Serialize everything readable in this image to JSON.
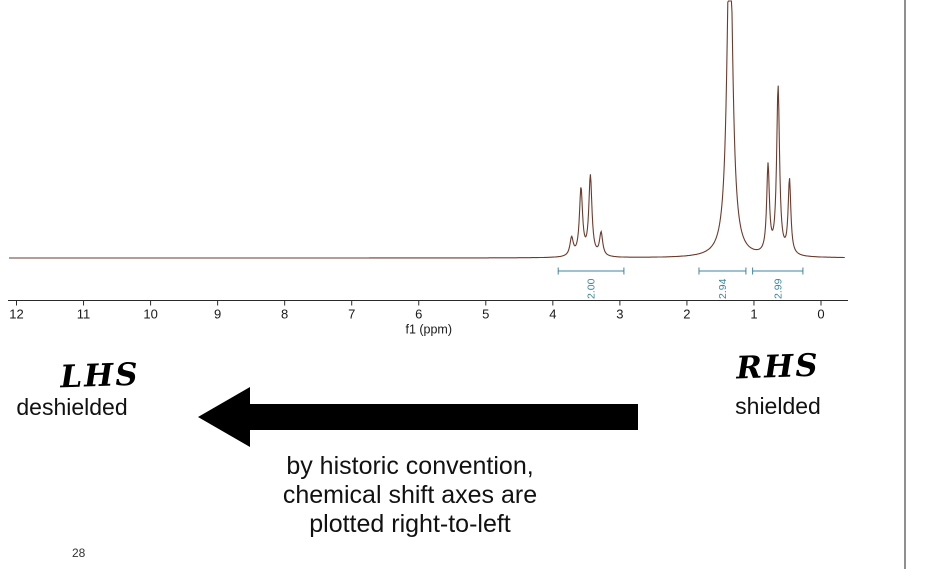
{
  "page": {
    "page_number": "28",
    "background_color": "#ffffff",
    "border_color": "#8f8f8f"
  },
  "chart_data": {
    "type": "line",
    "description": "1H NMR spectrum trace",
    "xlabel": "f1 (ppm)",
    "x_ticks": [
      "12",
      "11",
      "10",
      "9",
      "8",
      "7",
      "6",
      "5",
      "4",
      "3",
      "2",
      "1",
      "0"
    ],
    "x_range": [
      12.1,
      -0.35
    ],
    "axis_reversed": true,
    "grid": false,
    "line_color": "#6e3a2c",
    "integral_color": "#3e85a0",
    "axis_color": "#2a2a2a",
    "peaks": [
      {
        "ppm": 3.72,
        "height": 0.07,
        "width": 0.03
      },
      {
        "ppm": 3.58,
        "height": 0.26,
        "width": 0.028
      },
      {
        "ppm": 3.44,
        "height": 0.31,
        "width": 0.028
      },
      {
        "ppm": 3.28,
        "height": 0.09,
        "width": 0.028
      },
      {
        "ppm": 1.36,
        "height": 1.35,
        "width": 0.05
      },
      {
        "ppm": 0.79,
        "height": 0.34,
        "width": 0.024
      },
      {
        "ppm": 0.64,
        "height": 0.65,
        "width": 0.026
      },
      {
        "ppm": 0.47,
        "height": 0.29,
        "width": 0.024
      }
    ],
    "integrals": [
      {
        "label": "2.00",
        "from": 3.92,
        "to": 2.94
      },
      {
        "label": "2.94",
        "from": 1.82,
        "to": 1.12
      },
      {
        "label": "2.99",
        "from": 1.02,
        "to": 0.27
      }
    ]
  },
  "annotations": {
    "lhs_label": "LHS",
    "lhs_sub": "deshielded",
    "rhs_label": "RHS",
    "rhs_sub": "shielded",
    "caption_lines": [
      "by historic convention,",
      "chemical shift axes are",
      "plotted right-to-left"
    ],
    "arrow": {
      "direction": "left",
      "color": "#000000"
    }
  }
}
